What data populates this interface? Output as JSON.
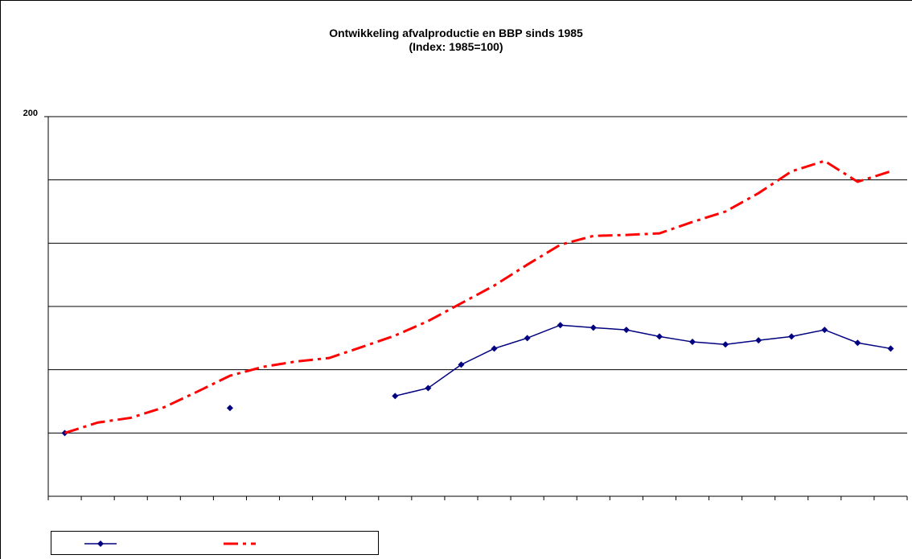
{
  "chart_data": {
    "type": "line",
    "title": "Ontwikkeling afvalproductie en BBP sinds 1985",
    "subtitle": "(Index: 1985=100)",
    "categories": [
      null,
      null,
      null,
      null,
      null,
      null,
      null,
      null,
      null,
      null,
      null,
      null,
      null,
      null,
      null,
      null,
      null,
      null,
      null,
      null,
      null,
      null,
      null,
      null,
      null,
      null
    ],
    "series": [
      {
        "color": "#000080",
        "marker": "diamond",
        "dash": "solid",
        "values": [
          100,
          null,
          null,
          null,
          null,
          107.9,
          null,
          null,
          null,
          null,
          111.7,
          114.2,
          121.6,
          126.7,
          130.0,
          134.1,
          133.3,
          132.6,
          130.5,
          128.8,
          128.0,
          129.3,
          130.5,
          132.6,
          128.5,
          126.7
        ]
      },
      {
        "color": "#ff0000",
        "marker": "none",
        "dash": "dash-dot",
        "values": [
          100,
          103.3,
          104.8,
          108.1,
          113.0,
          118.1,
          120.9,
          122.6,
          123.7,
          127.2,
          130.8,
          135.4,
          141.0,
          146.6,
          153.2,
          159.5,
          162.3,
          162.6,
          163.1,
          166.7,
          170.0,
          175.8,
          182.7,
          186.0,
          179.4,
          182.7
        ]
      }
    ],
    "ylim": [
      80,
      200
    ],
    "yticks": [
      200
    ],
    "grid_lines": [
      80,
      100,
      120,
      140,
      160,
      180
    ],
    "grid": true,
    "legend": "bottom-left"
  }
}
